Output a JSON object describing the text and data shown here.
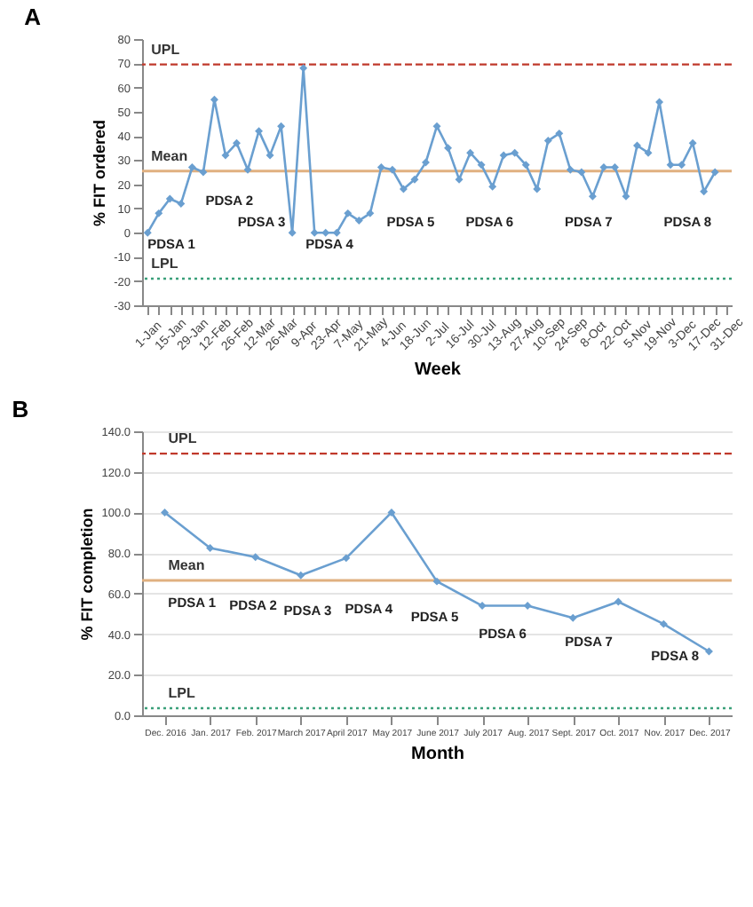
{
  "chart_data": [
    {
      "type": "line",
      "title": "A",
      "xlabel": "Week",
      "ylabel": "% FIT ordered",
      "categories": [
        "1-Jan",
        null,
        "15-Jan",
        null,
        "29-Jan",
        null,
        "12-Feb",
        null,
        "26-Feb",
        null,
        "12-Mar",
        null,
        "26-Mar",
        null,
        "9-Apr",
        null,
        "23-Apr",
        null,
        "7-May",
        null,
        "21-May",
        null,
        "4-Jun",
        null,
        "18-Jun",
        null,
        "2-Jul",
        null,
        "16-Jul",
        null,
        "30-Jul",
        null,
        "13-Aug",
        null,
        "27-Aug",
        null,
        "10-Sep",
        null,
        "24-Sep",
        null,
        "8-Oct",
        null,
        "22-Oct",
        null,
        "5-Nov",
        null,
        "19-Nov",
        null,
        "3-Dec",
        null,
        "17-Dec",
        null,
        "31-Dec"
      ],
      "series": [
        {
          "color": "#6a9fd0",
          "values": [
            0,
            8,
            14,
            12,
            27,
            25,
            55,
            32,
            37,
            26,
            42,
            32,
            44,
            0,
            68,
            0,
            0,
            0,
            8,
            5,
            8,
            27,
            26,
            18,
            22,
            29,
            44,
            35,
            22,
            33,
            28,
            19,
            32,
            33,
            28,
            18,
            38,
            41,
            26,
            25,
            15,
            27,
            27,
            15,
            36,
            33,
            54,
            28,
            28,
            37,
            17,
            25,
            null
          ]
        }
      ],
      "ylim": [
        -30,
        80
      ],
      "yticks": [
        -30,
        -20,
        -10,
        0,
        10,
        20,
        30,
        40,
        50,
        60,
        70,
        80
      ],
      "grid": false,
      "marker": "diamond",
      "ref_lines": [
        {
          "axis": "y",
          "value": 69.5,
          "label": "UPL",
          "color": "#c0392b",
          "line_style": "dashed"
        },
        {
          "axis": "y",
          "value": 25.5,
          "label": "Mean",
          "color": "#e0b080",
          "line_style": "solid"
        },
        {
          "axis": "y",
          "value": -19,
          "label": "LPL",
          "color": "#3aa07a",
          "line_style": "dotted"
        }
      ],
      "annotations": [
        "PDSA 1",
        "PDSA 2",
        "PDSA 3",
        "PDSA 4",
        "PDSA 5",
        "PDSA 6",
        "PDSA 7",
        "PDSA 8"
      ]
    },
    {
      "type": "line",
      "title": "B",
      "xlabel": "Month",
      "ylabel": "% FIT completion",
      "categories": [
        "Dec. 2016",
        "Jan. 2017",
        "Feb. 2017",
        "March 2017",
        "April 2017",
        "May 2017",
        "June 2017",
        "July 2017",
        "Aug. 2017",
        "Sept. 2017",
        "Oct. 2017",
        "Nov. 2017",
        "Dec. 2017"
      ],
      "series": [
        {
          "color": "#6a9fd0",
          "values": [
            100,
            82.5,
            78,
            69,
            77.5,
            100,
            66,
            54,
            54,
            48,
            56,
            45,
            31.5
          ]
        }
      ],
      "ylim": [
        0,
        140
      ],
      "yticks": [
        {
          "value": 0,
          "label": "0.0"
        },
        {
          "value": 20,
          "label": "20.0"
        },
        {
          "value": 40,
          "label": "40.0"
        },
        {
          "value": 60,
          "label": "60.0"
        },
        {
          "value": 80,
          "label": "80.0"
        },
        {
          "value": 100,
          "label": "100.0"
        },
        {
          "value": 120,
          "label": "120.0"
        },
        {
          "value": 140,
          "label": "140.0"
        }
      ],
      "grid": "y",
      "marker": "diamond",
      "ref_lines": [
        {
          "axis": "y",
          "value": 129,
          "label": "UPL",
          "color": "#c0392b",
          "line_style": "dashed"
        },
        {
          "axis": "y",
          "value": 66.5,
          "label": "Mean",
          "color": "#e0b080",
          "line_style": "solid"
        },
        {
          "axis": "y",
          "value": 3.5,
          "label": "LPL",
          "color": "#3aa07a",
          "line_style": "dotted"
        }
      ],
      "annotations": [
        "PDSA 1",
        "PDSA 2",
        "PDSA 3",
        "PDSA 4",
        "PDSA 5",
        "PDSA 6",
        "PDSA 7",
        "PDSA 8"
      ]
    }
  ]
}
